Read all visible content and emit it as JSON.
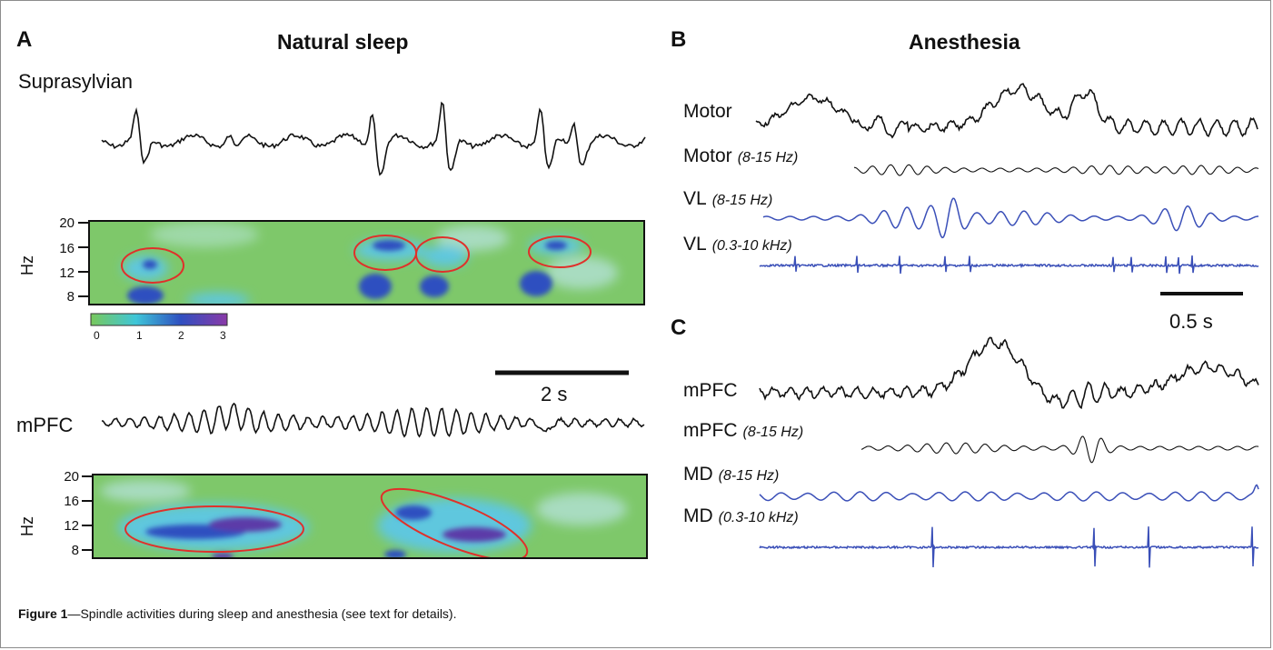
{
  "figure": {
    "caption_prefix": "Figure 1",
    "caption_text": "—Spindle activities during sleep and anesthesia (see text for details)."
  },
  "panel_a": {
    "letter": "A",
    "title": "Natural sleep",
    "trace_top_label": "Suprasylvian",
    "trace_bottom_label": "mPFC",
    "spectrogram_ylabel": "Hz",
    "yticks": [
      "20",
      "16",
      "12",
      "8"
    ],
    "colorbar_ticks": [
      "0",
      "1",
      "2",
      "3"
    ],
    "scalebar_label": "2 s"
  },
  "panel_b": {
    "letter": "B",
    "title": "Anesthesia",
    "traces": [
      {
        "label": "Motor",
        "band": "",
        "color": "#111111"
      },
      {
        "label": "Motor",
        "band": "(8-15 Hz)",
        "color": "#111111"
      },
      {
        "label": "VL",
        "band": "(8-15 Hz)",
        "color": "#3a4fb8"
      },
      {
        "label": "VL",
        "band": "(0.3-10 kHz)",
        "color": "#3a4fb8"
      }
    ],
    "scalebar_label": "0.5 s"
  },
  "panel_c": {
    "letter": "C",
    "traces": [
      {
        "label": "mPFC",
        "band": "",
        "color": "#111111"
      },
      {
        "label": "mPFC",
        "band": "(8-15 Hz)",
        "color": "#111111"
      },
      {
        "label": "MD",
        "band": "(8-15 Hz)",
        "color": "#3a4fb8"
      },
      {
        "label": "MD",
        "band": "(0.3-10 kHz)",
        "color": "#3a4fb8"
      }
    ]
  },
  "colors": {
    "trace_black": "#111111",
    "trace_blue": "#3a4fb8",
    "spectrogram_bg": "#7ec86a",
    "spindle_ellipse": "#e0302a"
  }
}
